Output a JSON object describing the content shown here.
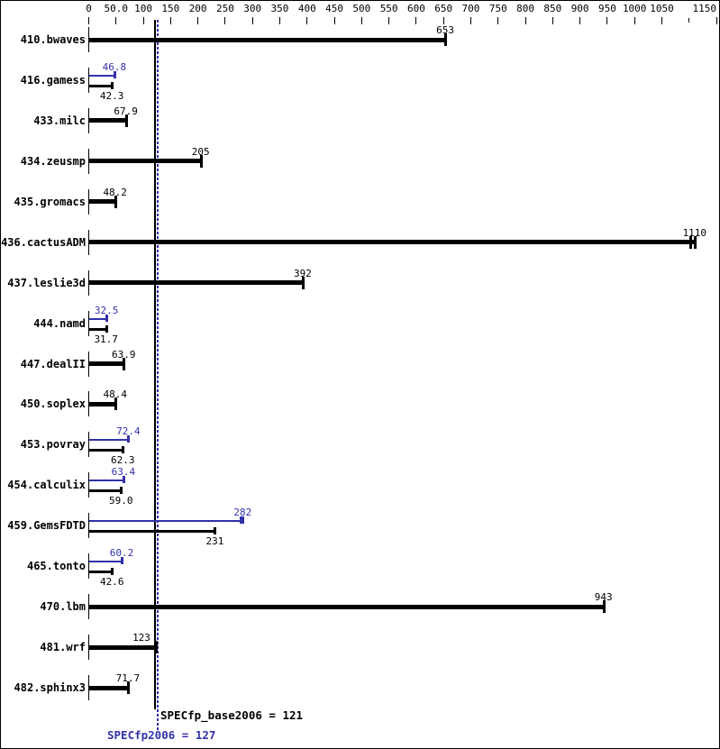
{
  "chart_data": {
    "type": "bar",
    "orientation": "horizontal",
    "title": "",
    "colors": {
      "base": "#000000",
      "peak": "#3232aa",
      "background": "#ffffff"
    },
    "axis": {
      "min": 0,
      "max": 1150,
      "ticks": [
        {
          "v": 0,
          "label": "0"
        },
        {
          "v": 50,
          "label": "50.0"
        },
        {
          "v": 100,
          "label": "100"
        },
        {
          "v": 150,
          "label": "150"
        },
        {
          "v": 200,
          "label": "200"
        },
        {
          "v": 250,
          "label": "250"
        },
        {
          "v": 300,
          "label": "300"
        },
        {
          "v": 350,
          "label": "350"
        },
        {
          "v": 400,
          "label": "400"
        },
        {
          "v": 450,
          "label": "450"
        },
        {
          "v": 500,
          "label": "500"
        },
        {
          "v": 550,
          "label": "550"
        },
        {
          "v": 600,
          "label": "600"
        },
        {
          "v": 650,
          "label": "650"
        },
        {
          "v": 700,
          "label": "700"
        },
        {
          "v": 750,
          "label": "750"
        },
        {
          "v": 800,
          "label": "800"
        },
        {
          "v": 850,
          "label": "850"
        },
        {
          "v": 900,
          "label": "900"
        },
        {
          "v": 950,
          "label": "950"
        },
        {
          "v": 1000,
          "label": "1000"
        },
        {
          "v": 1050,
          "label": "1050"
        },
        {
          "v": 1100,
          "label": ""
        },
        {
          "v": 1150,
          "label": "1150"
        }
      ]
    },
    "benchmarks": [
      {
        "name": "410.bwaves",
        "base": {
          "value": 653,
          "label": "653"
        },
        "peak": null
      },
      {
        "name": "416.gamess",
        "base": {
          "value": 42.3,
          "label": "42.3"
        },
        "peak": {
          "value": 46.8,
          "label": "46.8"
        }
      },
      {
        "name": "433.milc",
        "base": {
          "value": 67.9,
          "label": "67.9"
        },
        "peak": null
      },
      {
        "name": "434.zeusmp",
        "base": {
          "value": 205,
          "label": "205"
        },
        "peak": null
      },
      {
        "name": "435.gromacs",
        "base": {
          "value": 48.2,
          "label": "48.2"
        },
        "peak": null
      },
      {
        "name": "436.cactusADM",
        "base": {
          "value": 1110,
          "label": "1110",
          "extra_tick": 1102
        },
        "peak": null
      },
      {
        "name": "437.leslie3d",
        "base": {
          "value": 392,
          "label": "392"
        },
        "peak": null
      },
      {
        "name": "444.namd",
        "base": {
          "value": 31.7,
          "label": "31.7"
        },
        "peak": {
          "value": 32.5,
          "label": "32.5"
        }
      },
      {
        "name": "447.dealII",
        "base": {
          "value": 63.9,
          "label": "63.9"
        },
        "peak": null
      },
      {
        "name": "450.soplex",
        "base": {
          "value": 48.4,
          "label": "48.4"
        },
        "peak": null
      },
      {
        "name": "453.povray",
        "base": {
          "value": 62.3,
          "label": "62.3"
        },
        "peak": {
          "value": 72.4,
          "label": "72.4"
        }
      },
      {
        "name": "454.calculix",
        "base": {
          "value": 59.0,
          "label": "59.0"
        },
        "peak": {
          "value": 63.4,
          "label": "63.4"
        }
      },
      {
        "name": "459.GemsFDTD",
        "base": {
          "value": 231,
          "label": "231"
        },
        "peak": {
          "value": 282,
          "label": "282",
          "extra_tick": 279
        }
      },
      {
        "name": "465.tonto",
        "base": {
          "value": 42.6,
          "label": "42.6"
        },
        "peak": {
          "value": 60.2,
          "label": "60.2"
        }
      },
      {
        "name": "470.lbm",
        "base": {
          "value": 943,
          "label": "943"
        },
        "peak": null
      },
      {
        "name": "481.wrf",
        "base": {
          "value": 123,
          "label": "123",
          "label_dx": -16
        },
        "peak": null
      },
      {
        "name": "482.sphinx3",
        "base": {
          "value": 71.7,
          "label": "71.7"
        },
        "peak": null
      }
    ],
    "reference_lines": [
      {
        "id": "base",
        "value": 121,
        "style": "solid",
        "color": "#000000",
        "label": "SPECfp_base2006 = 121"
      },
      {
        "id": "peak",
        "value": 127,
        "style": "dotted",
        "color": "#3232aa",
        "label": "SPECfp2006 = 127"
      }
    ]
  }
}
